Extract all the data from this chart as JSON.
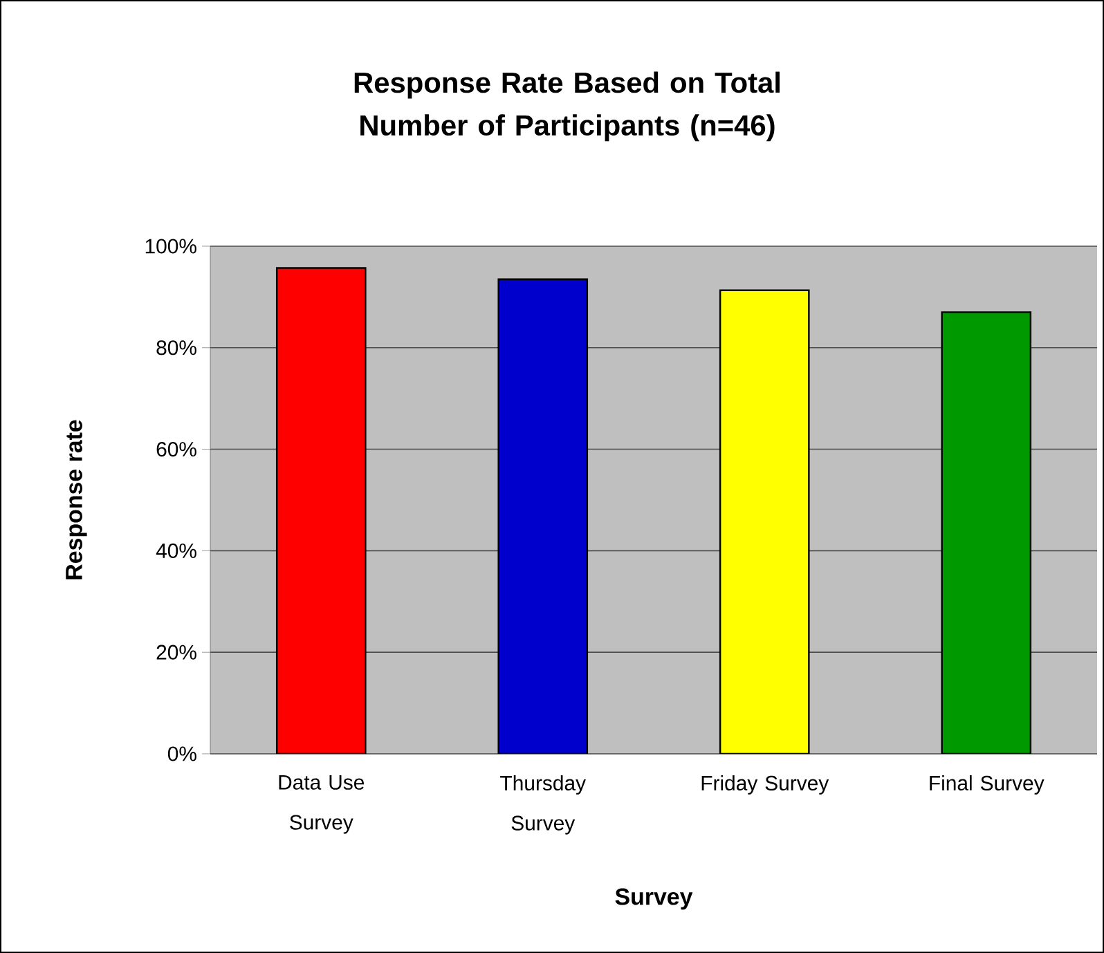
{
  "chart_data": {
    "type": "bar",
    "title": "Response Rate Based on Total Number of Participants (n=46)",
    "categories": [
      "Data Use Survey",
      "Thursday Survey",
      "Friday Survey",
      "Final Survey"
    ],
    "values": [
      95.7,
      93.5,
      91.3,
      87.0
    ],
    "colors": [
      "#ff0000",
      "#0000cc",
      "#ffff00",
      "#009900"
    ],
    "xlabel": "Survey",
    "ylabel": "Response rate",
    "ylim": [
      0,
      100
    ],
    "yticks": [
      {
        "value": 0,
        "label": "0%"
      },
      {
        "value": 20,
        "label": "20%"
      },
      {
        "value": 40,
        "label": "40%"
      },
      {
        "value": 60,
        "label": "60%"
      },
      {
        "value": 80,
        "label": "80%"
      },
      {
        "value": 100,
        "label": "100%"
      }
    ],
    "grid": "y"
  }
}
